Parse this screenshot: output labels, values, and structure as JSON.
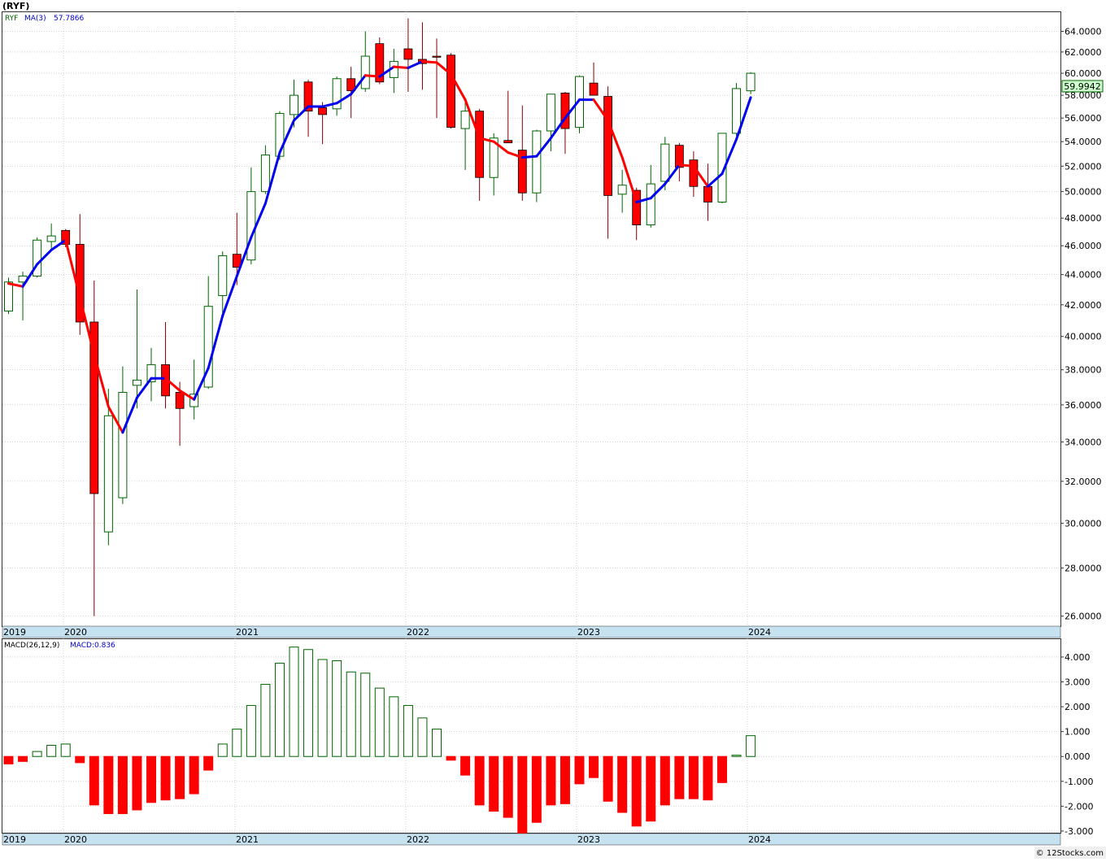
{
  "header": {
    "symbol_title": "(RYF)",
    "ticker_label": "RYF",
    "ma_label": "MA(3)",
    "ma_value": "57.7866",
    "last_price": "59.9942",
    "macd_params": "MACD(26,12,9)",
    "macd_value": "MACD:0.836",
    "watermark": "© 12Stocks.com"
  },
  "colors": {
    "up": "#006400",
    "down": "#ff0000",
    "ma_up": "#0000ee",
    "ma_down": "#ff0000",
    "axis_strip": "#c6e2f0",
    "grid": "#b4b4b4",
    "price_box": "#ccffcc"
  },
  "chart_data": [
    {
      "type": "candlestick",
      "title": "(RYF)",
      "scale": "log",
      "ylim": [
        25.6,
        66
      ],
      "y_ticks": [
        "26.0000",
        "28.0000",
        "30.0000",
        "32.0000",
        "34.0000",
        "36.0000",
        "38.0000",
        "40.0000",
        "42.0000",
        "44.0000",
        "46.0000",
        "48.0000",
        "50.0000",
        "52.0000",
        "54.0000",
        "56.0000",
        "58.0000",
        "60.0000",
        "62.0000",
        "64.0000"
      ],
      "year_labels": [
        "2019",
        "2020",
        "2021",
        "2022",
        "2023",
        "2024"
      ],
      "grid": true,
      "ohlc": [
        [
          41.6,
          43.8,
          41.4,
          43.5
        ],
        [
          43.5,
          44.2,
          41.0,
          43.9
        ],
        [
          43.9,
          46.6,
          43.8,
          46.4
        ],
        [
          46.3,
          47.6,
          45.8,
          46.7
        ],
        [
          47.1,
          47.2,
          45.9,
          46.1
        ],
        [
          46.1,
          48.3,
          40.1,
          40.9
        ],
        [
          40.9,
          43.6,
          26.0,
          31.4
        ],
        [
          29.6,
          36.9,
          29.0,
          35.4
        ],
        [
          31.2,
          38.2,
          30.9,
          36.7
        ],
        [
          37.1,
          43.0,
          35.8,
          37.4
        ],
        [
          37.3,
          39.3,
          36.2,
          38.3
        ],
        [
          38.3,
          40.9,
          35.8,
          36.5
        ],
        [
          36.7,
          37.3,
          33.8,
          35.8
        ],
        [
          35.9,
          38.6,
          35.2,
          36.6
        ],
        [
          37.0,
          43.9,
          36.9,
          41.9
        ],
        [
          42.6,
          45.6,
          41.4,
          45.3
        ],
        [
          45.4,
          48.4,
          43.3,
          44.5
        ],
        [
          45.0,
          51.9,
          44.7,
          50.0
        ],
        [
          50.0,
          53.7,
          49.8,
          52.9
        ],
        [
          52.8,
          56.6,
          52.5,
          56.4
        ],
        [
          56.3,
          59.4,
          55.2,
          58.0
        ],
        [
          59.2,
          59.4,
          54.4,
          56.6
        ],
        [
          56.9,
          57.4,
          53.8,
          56.3
        ],
        [
          56.8,
          59.7,
          56.2,
          59.5
        ],
        [
          59.5,
          60.6,
          56.0,
          58.4
        ],
        [
          58.6,
          64.0,
          58.3,
          61.6
        ],
        [
          62.8,
          63.4,
          59.0,
          59.2
        ],
        [
          59.6,
          62.3,
          58.2,
          61.1
        ],
        [
          62.3,
          65.3,
          58.3,
          61.3
        ],
        [
          61.3,
          64.9,
          58.5,
          60.9
        ],
        [
          61.6,
          63.3,
          56.0,
          61.5
        ],
        [
          61.7,
          61.9,
          55.1,
          55.2
        ],
        [
          55.1,
          57.8,
          51.7,
          56.6
        ],
        [
          56.6,
          56.8,
          49.3,
          51.1
        ],
        [
          51.1,
          54.7,
          49.7,
          54.3
        ],
        [
          54.1,
          58.4,
          54.0,
          53.9
        ],
        [
          53.3,
          57.1,
          49.3,
          49.9
        ],
        [
          49.9,
          55.0,
          49.2,
          54.9
        ],
        [
          54.9,
          58.1,
          53.2,
          58.1
        ],
        [
          58.2,
          58.3,
          53.0,
          55.1
        ],
        [
          55.2,
          59.8,
          54.7,
          59.7
        ],
        [
          59.1,
          61.0,
          58.1,
          58.0
        ],
        [
          57.9,
          58.8,
          46.5,
          49.7
        ],
        [
          49.8,
          51.7,
          48.4,
          50.5
        ],
        [
          50.1,
          50.3,
          46.4,
          47.5
        ],
        [
          47.5,
          52.1,
          47.3,
          50.6
        ],
        [
          50.8,
          54.4,
          50.1,
          53.8
        ],
        [
          53.7,
          53.9,
          50.8,
          51.9
        ],
        [
          52.5,
          53.2,
          49.6,
          50.4
        ],
        [
          50.4,
          52.2,
          47.8,
          49.2
        ],
        [
          49.2,
          54.7,
          49.1,
          54.7
        ],
        [
          54.7,
          59.1,
          54.5,
          58.6
        ],
        [
          58.4,
          60.1,
          58.1,
          60.0
        ]
      ],
      "ma3": [
        [
          0,
          43.4
        ],
        [
          1,
          43.2
        ],
        [
          2,
          44.7
        ],
        [
          3,
          45.7
        ],
        [
          4,
          46.4
        ],
        [
          5,
          null
        ],
        [
          6,
          38.9
        ],
        [
          7,
          35.9
        ],
        [
          8,
          34.5
        ],
        [
          9,
          36.4
        ],
        [
          10,
          37.5
        ],
        [
          11,
          37.5
        ],
        [
          12,
          36.8
        ],
        [
          13,
          36.3
        ],
        [
          14,
          38.1
        ],
        [
          15,
          41.3
        ],
        [
          16,
          43.9
        ],
        [
          17,
          46.6
        ],
        [
          18,
          49.1
        ],
        [
          19,
          53.1
        ],
        [
          20,
          55.8
        ],
        [
          21,
          57.0
        ],
        [
          22,
          57.0
        ],
        [
          23,
          57.3
        ],
        [
          24,
          58.1
        ],
        [
          25,
          59.8
        ],
        [
          26,
          59.7
        ],
        [
          27,
          60.6
        ],
        [
          28,
          60.5
        ],
        [
          29,
          61.1
        ],
        [
          30,
          61.0
        ],
        [
          31,
          59.9
        ],
        [
          32,
          57.6
        ],
        [
          33,
          54.3
        ],
        [
          34,
          54.0
        ],
        [
          35,
          53.1
        ],
        [
          36,
          52.7
        ],
        [
          37,
          52.8
        ],
        [
          38,
          54.3
        ],
        [
          39,
          56.0
        ],
        [
          40,
          57.6
        ],
        [
          41,
          57.6
        ],
        [
          42,
          55.8
        ],
        [
          43,
          52.7
        ],
        [
          44,
          49.2
        ],
        [
          45,
          49.5
        ],
        [
          46,
          50.6
        ],
        [
          47,
          52.1
        ],
        [
          48,
          52.0
        ],
        [
          49,
          50.4
        ],
        [
          50,
          51.4
        ],
        [
          51,
          54.2
        ],
        [
          52,
          57.8
        ]
      ],
      "ma_label": "MA(3)",
      "ma_value": 57.7866,
      "last_price": 59.9942
    },
    {
      "type": "histogram",
      "title": "MACD(26,12,9)",
      "ylim": [
        -3.1,
        4.75
      ],
      "y_ticks": [
        "4.000",
        "3.000",
        "2.000",
        "1.000",
        "0.000",
        "-1.000",
        "-2.000",
        "-3.000"
      ],
      "values": [
        -0.3,
        -0.2,
        0.2,
        0.45,
        0.5,
        -0.25,
        -1.95,
        -2.3,
        -2.3,
        -2.15,
        -1.85,
        -1.75,
        -1.7,
        -1.5,
        -0.55,
        0.5,
        1.1,
        2.05,
        2.9,
        3.75,
        4.4,
        4.3,
        3.9,
        3.85,
        3.4,
        3.35,
        2.75,
        2.4,
        2.05,
        1.55,
        1.1,
        -0.15,
        -0.75,
        -1.95,
        -2.2,
        -2.45,
        -3.1,
        -2.65,
        -1.95,
        -1.9,
        -1.1,
        -0.85,
        -1.8,
        -2.25,
        -2.8,
        -2.6,
        -1.95,
        -1.7,
        -1.7,
        -1.75,
        -1.05,
        0.05,
        0.836
      ],
      "macd_value": 0.836
    }
  ]
}
